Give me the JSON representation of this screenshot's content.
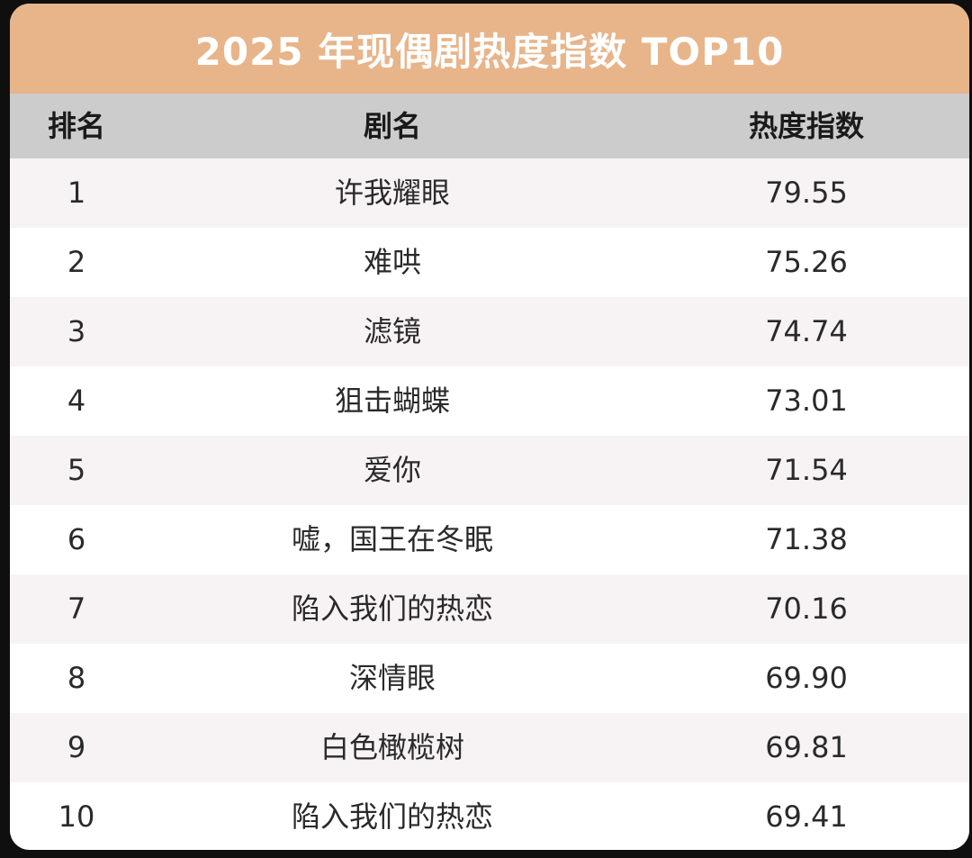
{
  "colors": {
    "title_bg": "#e8b48a",
    "header_bg": "#cccccc",
    "row_alt_bg": "#f7f3f4",
    "row_bg": "#ffffff",
    "page_bg": "#0f0f0f"
  },
  "title": "2025 年现偶剧热度指数 TOP10",
  "headers": {
    "rank": "排名",
    "name": "剧名",
    "score": "热度指数"
  },
  "rows": [
    {
      "rank": "1",
      "name": "许我耀眼",
      "score": "79.55"
    },
    {
      "rank": "2",
      "name": "难哄",
      "score": "75.26"
    },
    {
      "rank": "3",
      "name": "滤镜",
      "score": "74.74"
    },
    {
      "rank": "4",
      "name": "狙击蝴蝶",
      "score": "73.01"
    },
    {
      "rank": "5",
      "name": "爱你",
      "score": "71.54"
    },
    {
      "rank": "6",
      "name": "嘘，国王在冬眠",
      "score": "71.38"
    },
    {
      "rank": "7",
      "name": "陷入我们的热恋",
      "score": "70.16"
    },
    {
      "rank": "8",
      "name": "深情眼",
      "score": "69.90"
    },
    {
      "rank": "9",
      "name": "白色橄榄树",
      "score": "69.81"
    },
    {
      "rank": "10",
      "name": "陷入我们的热恋",
      "score": "69.41"
    }
  ]
}
